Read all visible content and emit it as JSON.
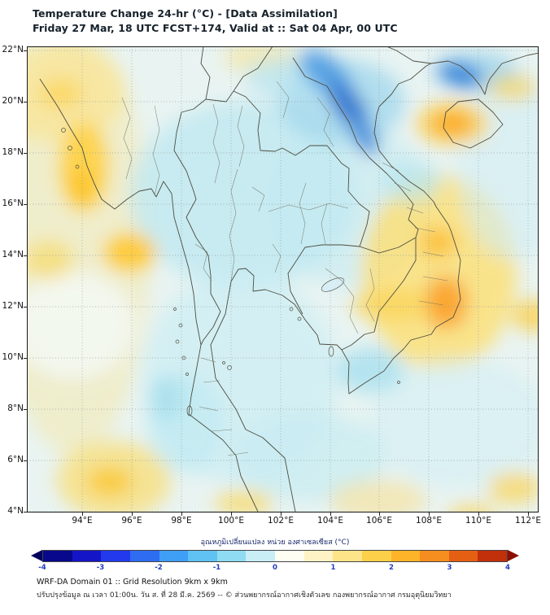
{
  "header": {
    "title_line1": "Temperature Change 24-hr (°C) - [Data Assimilation]",
    "title_line2": "Friday 27 Mar, 18 UTC FCST+174, Valid at :: Sat 04 Apr, 00 UTC"
  },
  "map": {
    "lat_labels": [
      "22°N",
      "20°N",
      "18°N",
      "16°N",
      "14°N",
      "12°N",
      "10°N",
      "8°N",
      "6°N",
      "4°N"
    ],
    "lon_labels": [
      "94°E",
      "96°E",
      "98°E",
      "100°E",
      "102°E",
      "104°E",
      "106°E",
      "108°E",
      "110°E",
      "112°E"
    ]
  },
  "colorbar": {
    "label": "อุณหภูมิเปลี่ยนแปลง หน่วย องศาเซลเซียส (°C)",
    "ticks": [
      "-4",
      "-3",
      "-2",
      "-1",
      "0",
      "1",
      "2",
      "3",
      "4"
    ],
    "range": [
      -4,
      4
    ],
    "colors": [
      "#08088c",
      "#1515c8",
      "#2239ee",
      "#2e6cf2",
      "#3f9ef5",
      "#5fc2f2",
      "#8fdcf2",
      "#c9eef6",
      "#fefef2",
      "#fdf3c4",
      "#fde488",
      "#fdd04a",
      "#fdb428",
      "#f68d1f",
      "#e55f13",
      "#c22f0b"
    ],
    "left_arrow_color": "#04045e",
    "right_arrow_color": "#8a0f00",
    "tick_color": "#1f3bbf"
  },
  "footer": {
    "line1": "WRF-DA Domain 01 :: Grid Resolution 9km x 9km",
    "line2": "ปรับปรุงข้อมูล ณ เวลา 01:00น. วัน ส. ที่ 28 มี.ค. 2569 -- © ส่วนพยากรณ์อากาศเชิงตัวเลข กองพยากรณ์อากาศ กรมอุตุนิยมวิทยา"
  }
}
